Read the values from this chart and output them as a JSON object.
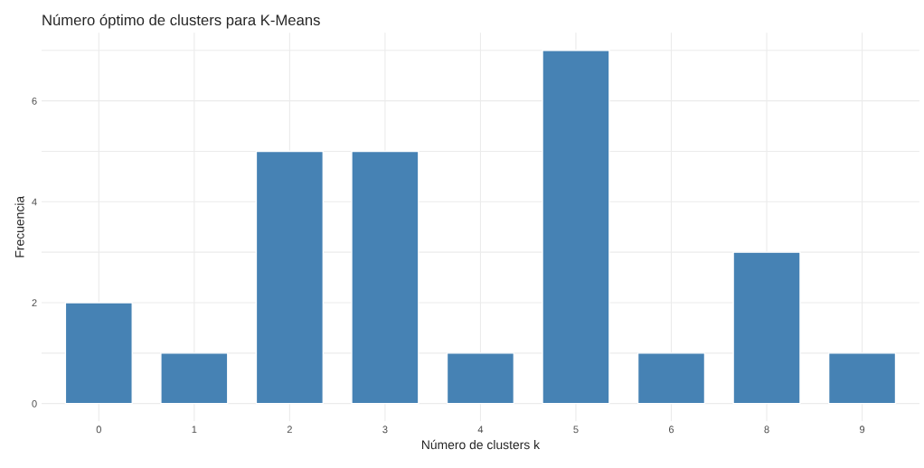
{
  "chart_data": {
    "type": "bar",
    "title": "Número óptimo de clusters para K-Means",
    "xlabel": "Número de clusters k",
    "ylabel": "Frecuencia",
    "categories": [
      "0",
      "1",
      "2",
      "3",
      "4",
      "5",
      "6",
      "8",
      "9"
    ],
    "values": [
      2,
      1,
      5,
      5,
      1,
      7,
      1,
      3,
      1
    ],
    "color": "#4682b4",
    "ylim": [
      -0.35,
      7.35
    ],
    "yticks": [
      0,
      {
        "value": 1,
        "label": null
      },
      2,
      {
        "value": 3,
        "label": null
      },
      4,
      {
        "value": 5,
        "label": null
      },
      6,
      {
        "value": 7,
        "label": null
      }
    ],
    "grid": true
  }
}
